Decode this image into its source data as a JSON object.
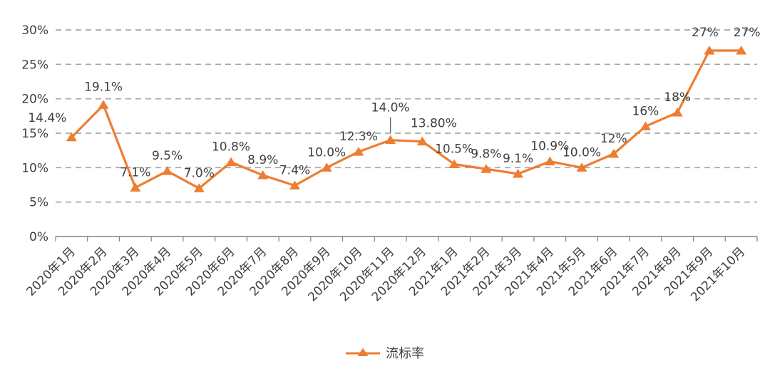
{
  "chart_data": {
    "type": "line",
    "title": "",
    "categories": [
      "2020年1月",
      "2020年2月",
      "2020年3月",
      "2020年4月",
      "2020年5月",
      "2020年6月",
      "2020年7月",
      "2020年8月",
      "2020年9月",
      "2020年10月",
      "2020年11月",
      "2020年12月",
      "2021年1月",
      "2021年2月",
      "2021年3月",
      "2021年4月",
      "2021年5月",
      "2021年6月",
      "2021年7月",
      "2021年8月",
      "2021年9月",
      "2021年10月"
    ],
    "series": [
      {
        "name": "流标率",
        "values": [
          14.4,
          19.1,
          7.1,
          9.5,
          7.0,
          10.8,
          8.9,
          7.4,
          10.0,
          12.3,
          14.0,
          13.8,
          10.5,
          9.8,
          9.1,
          10.9,
          10.0,
          12,
          16,
          18,
          27,
          27
        ],
        "labels": [
          "14.4%",
          "19.1%",
          "7.1%",
          "9.5%",
          "7.0%",
          "10.8%",
          "8.9%",
          "7.4%",
          "10.0%",
          "12.3%",
          "14.0%",
          "13.80%",
          "10.5%",
          "9.8%",
          "9.1%",
          "10.9%",
          "10.0%",
          "12%",
          "16%",
          "18%",
          "27%",
          "27%"
        ]
      }
    ],
    "ylim": [
      0,
      30
    ],
    "ytick_step": 5,
    "ytick_labels": [
      "0%",
      "5%",
      "10%",
      "15%",
      "20%",
      "25%",
      "30%"
    ],
    "grid": "horizontal-dashed",
    "legend": {
      "label": "流标率",
      "position": "bottom"
    },
    "colors": {
      "line": "#ED7D31",
      "grid": "#A6A6A6",
      "axis": "#808080",
      "text": "#404040"
    }
  }
}
